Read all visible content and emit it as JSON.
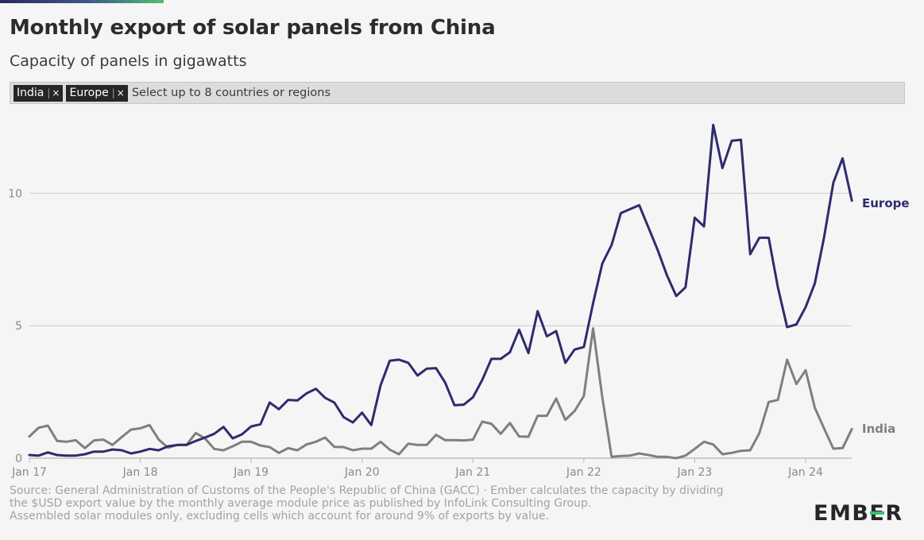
{
  "header": {
    "title": "Monthly export of solar panels from China",
    "subtitle": "Capacity of panels in gigawatts"
  },
  "selector": {
    "chips": [
      {
        "label": "India",
        "remove": "×"
      },
      {
        "label": "Europe",
        "remove": "×"
      }
    ],
    "placeholder": "Select up to 8 countries or regions"
  },
  "colors": {
    "europe": "#2e2c6e",
    "india": "#7f7f7f",
    "grid": "#cccccc",
    "accent": "#36c16d"
  },
  "chart_data": {
    "type": "line",
    "title": "Monthly export of solar panels from China",
    "subtitle": "Capacity of panels in gigawatts",
    "x_start": "Jan 17",
    "x_tick_labels": [
      "Jan 17",
      "Jan 18",
      "Jan 19",
      "Jan 20",
      "Jan 21",
      "Jan 22",
      "Jan 23",
      "Jan 24"
    ],
    "ylim": [
      0,
      12.5
    ],
    "y_ticks": [
      0,
      5,
      10
    ],
    "grid": true,
    "legend": "line-end labels",
    "series": [
      {
        "name": "Europe",
        "color": "#2e2c6e",
        "values": [
          0.12,
          0.1,
          0.22,
          0.12,
          0.1,
          0.1,
          0.15,
          0.25,
          0.25,
          0.33,
          0.3,
          0.18,
          0.25,
          0.35,
          0.3,
          0.45,
          0.5,
          0.5,
          0.65,
          0.78,
          0.92,
          1.18,
          0.75,
          0.9,
          1.2,
          1.28,
          2.1,
          1.85,
          2.2,
          2.18,
          2.45,
          2.62,
          2.28,
          2.1,
          1.55,
          1.35,
          1.72,
          1.25,
          2.75,
          3.68,
          3.72,
          3.6,
          3.12,
          3.38,
          3.4,
          2.85,
          2.0,
          2.02,
          2.3,
          2.95,
          3.75,
          3.75,
          4.0,
          4.85,
          3.97,
          5.55,
          4.6,
          4.8,
          3.6,
          4.1,
          4.2,
          5.85,
          7.35,
          8.05,
          9.25,
          9.4,
          9.55,
          8.7,
          7.85,
          6.9,
          6.12,
          6.45,
          9.08,
          8.75,
          12.58,
          10.95,
          11.98,
          12.02,
          7.7,
          8.32,
          8.32,
          6.45,
          4.95,
          5.05,
          5.7,
          6.6,
          8.35,
          10.4,
          11.32,
          9.72
        ]
      },
      {
        "name": "India",
        "color": "#7f7f7f",
        "values": [
          0.82,
          1.15,
          1.23,
          0.65,
          0.62,
          0.68,
          0.38,
          0.67,
          0.7,
          0.5,
          0.8,
          1.08,
          1.13,
          1.25,
          0.7,
          0.4,
          0.5,
          0.5,
          0.95,
          0.75,
          0.35,
          0.3,
          0.45,
          0.62,
          0.62,
          0.48,
          0.42,
          0.2,
          0.38,
          0.3,
          0.52,
          0.62,
          0.78,
          0.43,
          0.42,
          0.3,
          0.36,
          0.36,
          0.62,
          0.32,
          0.15,
          0.55,
          0.5,
          0.5,
          0.88,
          0.68,
          0.68,
          0.67,
          0.7,
          1.38,
          1.3,
          0.92,
          1.33,
          0.82,
          0.81,
          1.6,
          1.6,
          2.25,
          1.45,
          1.78,
          2.35,
          4.9,
          2.3,
          0.05,
          0.08,
          0.1,
          0.18,
          0.12,
          0.05,
          0.05,
          0.0,
          0.1,
          0.35,
          0.62,
          0.52,
          0.15,
          0.2,
          0.28,
          0.3,
          0.95,
          2.12,
          2.2,
          3.72,
          2.8,
          3.32,
          1.9,
          1.12,
          0.36,
          0.38,
          1.1
        ]
      }
    ]
  },
  "footer": {
    "source_line1": "Source: General Administration of Customs of the People's Republic of China (GACC) · Ember calculates the capacity by dividing",
    "source_line2": "the $USD export value by the monthly average module price as published by InfoLink Consulting Group.",
    "source_line3": "Assembled solar modules only, excluding cells which account for around 9% of exports by value.",
    "logo_text": "EMBER"
  }
}
